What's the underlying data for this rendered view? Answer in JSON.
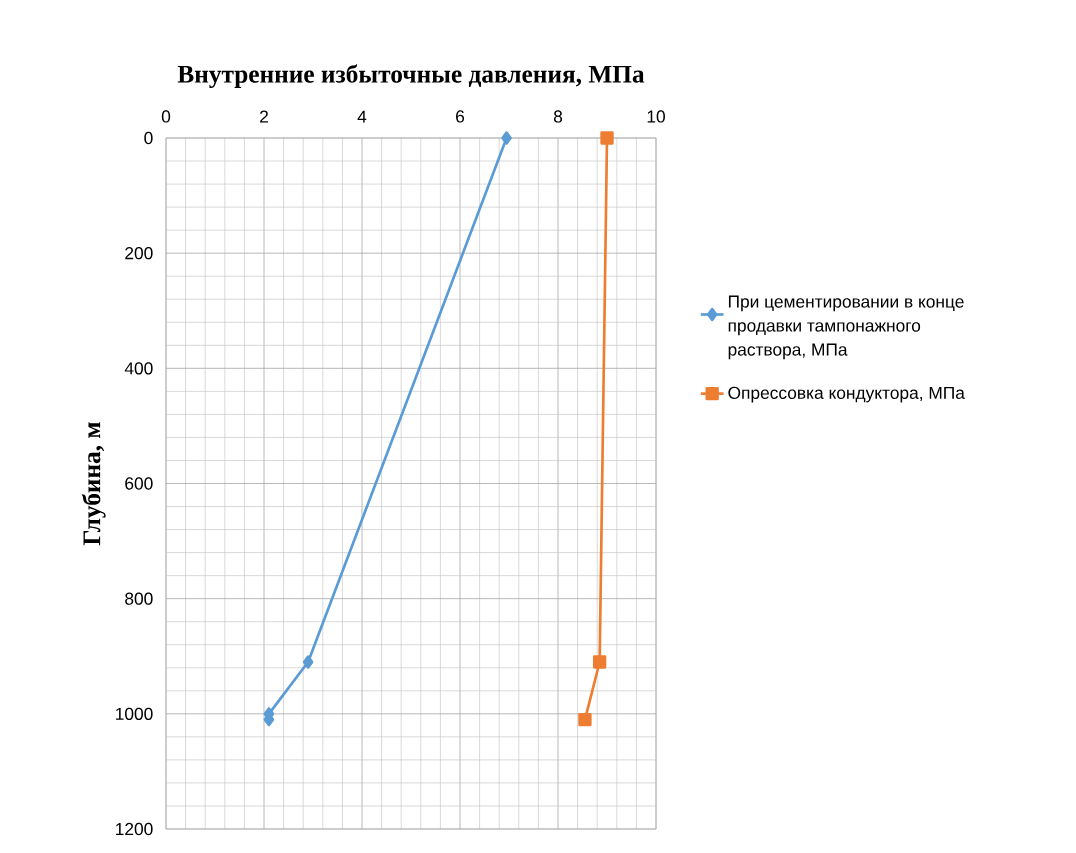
{
  "chart_data": {
    "type": "line",
    "orientation": "horizontal",
    "title": "Внутренние избыточные давления, МПа",
    "ylabel": "Глубина, м",
    "xlim": [
      0,
      10
    ],
    "xticks": [
      0,
      2,
      4,
      6,
      8,
      10
    ],
    "ylim": [
      1200,
      0
    ],
    "yticks": [
      0,
      200,
      400,
      600,
      800,
      1000,
      1200
    ],
    "grid": true,
    "legend": "right",
    "line_style": "solid",
    "series": [
      {
        "name": "При цементировании в конце продавки тампонажного раствора, МПа",
        "color": "#5b9bd5",
        "marker": "diamond",
        "x": [
          0,
          910,
          1000,
          1010
        ],
        "values": [
          6.95,
          2.9,
          2.1,
          2.1
        ]
      },
      {
        "name": "Опрессовка кондуктора, МПа",
        "color": "#ed7d31",
        "marker": "square",
        "x": [
          0,
          910,
          1010
        ],
        "values": [
          9.0,
          8.85,
          8.55
        ]
      }
    ]
  }
}
